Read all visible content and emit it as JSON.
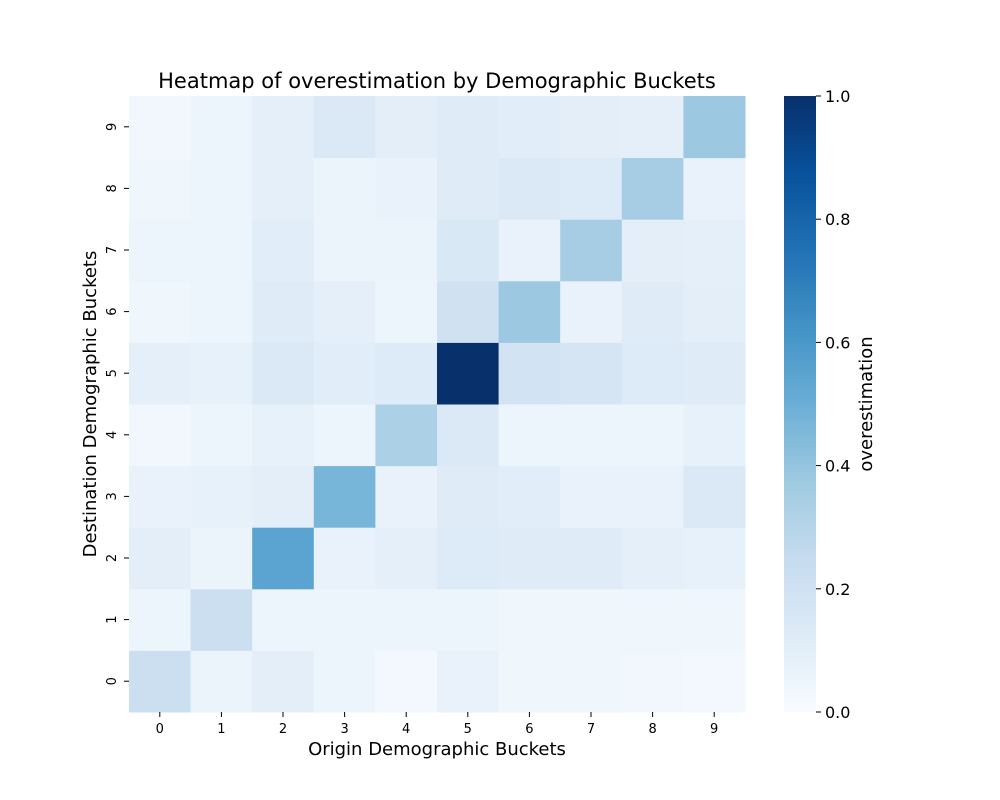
{
  "chart_data": {
    "type": "heatmap",
    "title": "Heatmap of overestimation by Demographic Buckets",
    "xlabel": "Origin Demographic Buckets",
    "ylabel": "Destination Demographic Buckets",
    "x_categories": [
      "0",
      "1",
      "2",
      "3",
      "4",
      "5",
      "6",
      "7",
      "8",
      "9"
    ],
    "y_categories": [
      "0",
      "1",
      "2",
      "3",
      "4",
      "5",
      "6",
      "7",
      "8",
      "9"
    ],
    "y_order": "bottom-to-top",
    "colormap": "Blues",
    "colorbar": {
      "label": "overestimation",
      "range": [
        0,
        1
      ],
      "ticks": [
        "0.0",
        "0.2",
        "0.4",
        "0.6",
        "0.8",
        "1.0"
      ]
    },
    "values": [
      [
        0.22,
        0.06,
        0.1,
        0.05,
        0.02,
        0.07,
        0.04,
        0.04,
        0.03,
        0.02
      ],
      [
        0.05,
        0.22,
        0.05,
        0.05,
        0.05,
        0.05,
        0.04,
        0.04,
        0.04,
        0.04
      ],
      [
        0.1,
        0.06,
        0.55,
        0.07,
        0.09,
        0.13,
        0.12,
        0.12,
        0.09,
        0.08
      ],
      [
        0.07,
        0.08,
        0.1,
        0.47,
        0.07,
        0.12,
        0.11,
        0.07,
        0.07,
        0.14
      ],
      [
        0.03,
        0.05,
        0.08,
        0.05,
        0.33,
        0.14,
        0.05,
        0.05,
        0.05,
        0.08
      ],
      [
        0.09,
        0.08,
        0.14,
        0.11,
        0.13,
        1.0,
        0.19,
        0.17,
        0.13,
        0.12
      ],
      [
        0.04,
        0.05,
        0.12,
        0.09,
        0.05,
        0.2,
        0.38,
        0.07,
        0.12,
        0.1
      ],
      [
        0.05,
        0.05,
        0.11,
        0.06,
        0.06,
        0.15,
        0.07,
        0.35,
        0.1,
        0.09
      ],
      [
        0.04,
        0.05,
        0.09,
        0.06,
        0.07,
        0.12,
        0.14,
        0.13,
        0.35,
        0.07
      ],
      [
        0.03,
        0.05,
        0.09,
        0.14,
        0.1,
        0.12,
        0.11,
        0.1,
        0.09,
        0.38
      ]
    ]
  }
}
